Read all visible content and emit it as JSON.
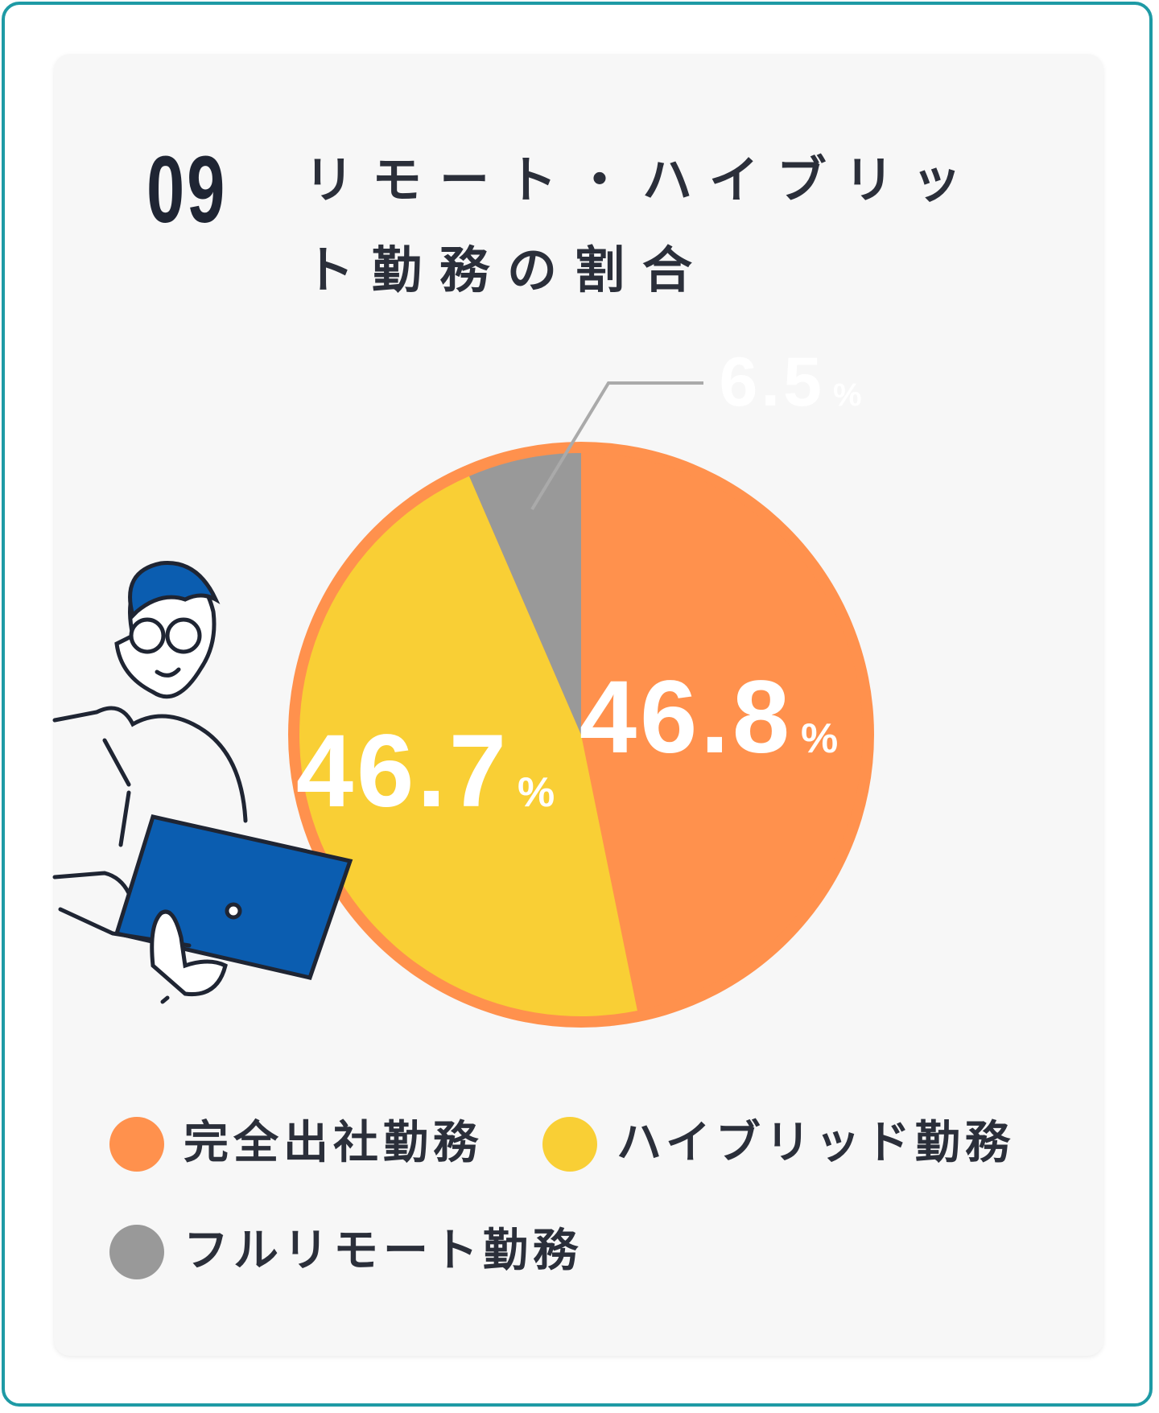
{
  "chart_data": {
    "type": "pie",
    "number": "09",
    "title": "リモート・ハイブリット勤務の割合",
    "categories": [
      "完全出社勤務",
      "ハイブリッド勤務",
      "フルリモート勤務"
    ],
    "values": [
      46.8,
      46.7,
      6.5
    ],
    "unit": "%",
    "colors": [
      "#FF914D",
      "#F9CF35",
      "#999999"
    ]
  }
}
